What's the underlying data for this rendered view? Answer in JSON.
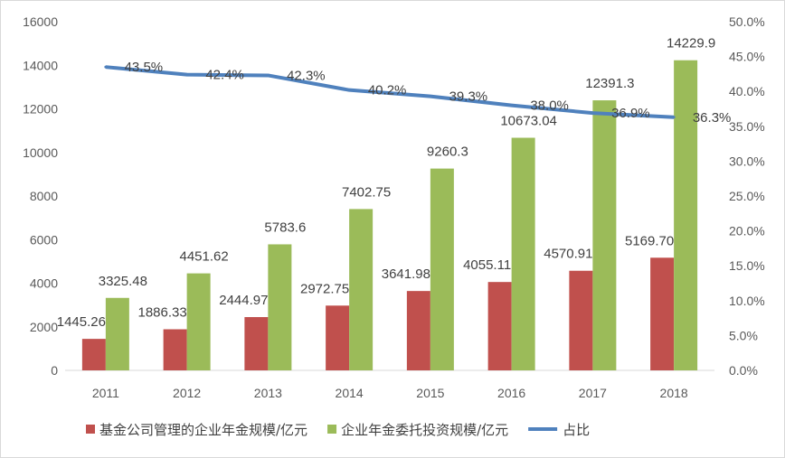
{
  "chart_data": {
    "type": "bar",
    "categories": [
      "2011",
      "2012",
      "2013",
      "2014",
      "2015",
      "2016",
      "2017",
      "2018"
    ],
    "series": [
      {
        "name": "基金公司管理的企业年金规模/亿元",
        "type": "bar",
        "axis": "left",
        "color": "#C0504D",
        "values": [
          1445.26,
          1886.33,
          2444.97,
          2972.75,
          3641.98,
          4055.11,
          4570.91,
          5169.7
        ],
        "labels": [
          "1445.26",
          "1886.33",
          "2444.97",
          "2972.75",
          "3641.98",
          "4055.11",
          "4570.91",
          "5169.70"
        ]
      },
      {
        "name": "企业年金委托投资规模/亿元",
        "type": "bar",
        "axis": "left",
        "color": "#9BBB59",
        "values": [
          3325.48,
          4451.62,
          5783.6,
          7402.75,
          9260.3,
          10673.04,
          12391.3,
          14229.9
        ],
        "labels": [
          "3325.48",
          "4451.62",
          "5783.6",
          "7402.75",
          "9260.3",
          "10673.04",
          "12391.3",
          "14229.9"
        ]
      },
      {
        "name": "占比",
        "type": "line",
        "axis": "right",
        "color": "#4F81BD",
        "values": [
          43.5,
          42.4,
          42.3,
          40.2,
          39.3,
          38.0,
          36.9,
          36.3
        ],
        "labels": [
          "43.5%",
          "42.4%",
          "42.3%",
          "40.2%",
          "39.3%",
          "38.0%",
          "36.9%",
          "36.3%"
        ]
      }
    ],
    "y_left": {
      "lim": [
        0,
        16000
      ],
      "ticks": [
        "0",
        "2000",
        "4000",
        "6000",
        "8000",
        "10000",
        "12000",
        "14000",
        "16000"
      ]
    },
    "y_right": {
      "lim": [
        0,
        50
      ],
      "ticks": [
        "0.0%",
        "5.0%",
        "10.0%",
        "15.0%",
        "20.0%",
        "25.0%",
        "30.0%",
        "35.0%",
        "40.0%",
        "45.0%",
        "50.0%"
      ]
    },
    "grid": false,
    "legend_position": "bottom"
  }
}
